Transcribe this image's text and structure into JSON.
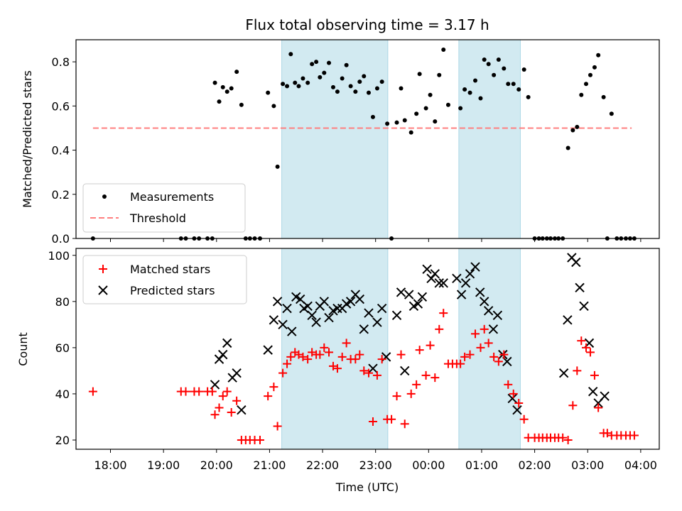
{
  "title": "Flux total observing time = 3.17 h",
  "colors": {
    "measurement": "#000000",
    "threshold": "#ff7f7f",
    "matched": "#ff0000",
    "predicted": "#000000",
    "shade": "#add8e6"
  },
  "chart_data": [
    {
      "type": "scatter",
      "id": "top",
      "ylabel": "Matched/Predicted stars",
      "xlim": [
        17.35,
        28.35
      ],
      "ylim": [
        0,
        0.9
      ],
      "yticks": [
        0.0,
        0.2,
        0.4,
        0.6,
        0.8
      ],
      "ytick_labels": [
        "0.0",
        "0.2",
        "0.4",
        "0.6",
        "0.8"
      ],
      "shaded_x_ranges": [
        [
          21.23,
          23.23
        ],
        [
          24.57,
          25.73
        ]
      ],
      "legend": {
        "position": "lower left",
        "entries": [
          "Measurements",
          "Threshold"
        ]
      },
      "threshold": {
        "name": "Threshold",
        "x": [
          17.67,
          27.83
        ],
        "y": 0.5
      },
      "measurements": {
        "name": "Measurements",
        "points": [
          [
            17.67,
            0
          ],
          [
            19.33,
            0
          ],
          [
            19.42,
            0
          ],
          [
            19.58,
            0
          ],
          [
            19.67,
            0
          ],
          [
            19.83,
            0
          ],
          [
            19.92,
            0
          ],
          [
            19.97,
            0.705
          ],
          [
            20.05,
            0.62
          ],
          [
            20.12,
            0.685
          ],
          [
            20.2,
            0.665
          ],
          [
            20.28,
            0.68
          ],
          [
            20.38,
            0.755
          ],
          [
            20.47,
            0.605
          ],
          [
            20.55,
            0
          ],
          [
            20.63,
            0
          ],
          [
            20.72,
            0
          ],
          [
            20.82,
            0
          ],
          [
            20.97,
            0.66
          ],
          [
            21.08,
            0.6
          ],
          [
            21.15,
            0.325
          ],
          [
            21.25,
            0.7
          ],
          [
            21.33,
            0.69
          ],
          [
            21.4,
            0.835
          ],
          [
            21.48,
            0.705
          ],
          [
            21.55,
            0.69
          ],
          [
            21.63,
            0.725
          ],
          [
            21.72,
            0.705
          ],
          [
            21.8,
            0.79
          ],
          [
            21.88,
            0.8
          ],
          [
            21.95,
            0.73
          ],
          [
            22.03,
            0.75
          ],
          [
            22.12,
            0.795
          ],
          [
            22.2,
            0.685
          ],
          [
            22.28,
            0.665
          ],
          [
            22.37,
            0.725
          ],
          [
            22.45,
            0.785
          ],
          [
            22.53,
            0.69
          ],
          [
            22.62,
            0.665
          ],
          [
            22.7,
            0.71
          ],
          [
            22.78,
            0.735
          ],
          [
            22.87,
            0.66
          ],
          [
            22.95,
            0.55
          ],
          [
            23.03,
            0.68
          ],
          [
            23.12,
            0.71
          ],
          [
            23.22,
            0.52
          ],
          [
            23.3,
            0
          ],
          [
            23.4,
            0.525
          ],
          [
            23.48,
            0.68
          ],
          [
            23.55,
            0.535
          ],
          [
            23.67,
            0.48
          ],
          [
            23.77,
            0.565
          ],
          [
            23.83,
            0.745
          ],
          [
            23.95,
            0.59
          ],
          [
            24.03,
            0.65
          ],
          [
            24.12,
            0.53
          ],
          [
            24.2,
            0.74
          ],
          [
            24.28,
            0.855
          ],
          [
            24.37,
            0.605
          ],
          [
            24.6,
            0.59
          ],
          [
            24.68,
            0.675
          ],
          [
            24.78,
            0.66
          ],
          [
            24.88,
            0.715
          ],
          [
            24.98,
            0.635
          ],
          [
            25.05,
            0.81
          ],
          [
            25.13,
            0.79
          ],
          [
            25.23,
            0.74
          ],
          [
            25.32,
            0.81
          ],
          [
            25.42,
            0.77
          ],
          [
            25.5,
            0.7
          ],
          [
            25.6,
            0.7
          ],
          [
            25.7,
            0.675
          ],
          [
            25.8,
            0.765
          ],
          [
            25.88,
            0.64
          ],
          [
            26.0,
            0
          ],
          [
            26.08,
            0
          ],
          [
            26.15,
            0
          ],
          [
            26.23,
            0
          ],
          [
            26.3,
            0
          ],
          [
            26.38,
            0
          ],
          [
            26.45,
            0
          ],
          [
            26.53,
            0
          ],
          [
            26.63,
            0.41
          ],
          [
            26.72,
            0.49
          ],
          [
            26.8,
            0.505
          ],
          [
            26.88,
            0.65
          ],
          [
            26.97,
            0.7
          ],
          [
            27.05,
            0.74
          ],
          [
            27.13,
            0.775
          ],
          [
            27.2,
            0.83
          ],
          [
            27.3,
            0.64
          ],
          [
            27.37,
            0
          ],
          [
            27.45,
            0.565
          ],
          [
            27.55,
            0
          ],
          [
            27.63,
            0
          ],
          [
            27.72,
            0
          ],
          [
            27.8,
            0
          ],
          [
            27.88,
            0
          ]
        ]
      }
    },
    {
      "type": "scatter",
      "id": "bottom",
      "xlabel": "Time (UTC)",
      "ylabel": "Count",
      "xlim": [
        17.35,
        28.35
      ],
      "ylim": [
        16,
        103
      ],
      "yticks": [
        20,
        40,
        60,
        80,
        100
      ],
      "ytick_labels": [
        "20",
        "40",
        "60",
        "80",
        "100"
      ],
      "xticks": [
        18,
        19,
        20,
        21,
        22,
        23,
        24,
        25,
        26,
        27,
        28
      ],
      "xtick_labels": [
        "18:00",
        "19:00",
        "20:00",
        "21:00",
        "22:00",
        "23:00",
        "00:00",
        "01:00",
        "02:00",
        "03:00",
        "04:00"
      ],
      "shaded_x_ranges": [
        [
          21.23,
          23.23
        ],
        [
          24.57,
          25.73
        ]
      ],
      "legend": {
        "position": "upper left",
        "entries": [
          "Matched stars",
          "Predicted stars"
        ]
      },
      "matched": {
        "name": "Matched stars",
        "points": [
          [
            17.67,
            41
          ],
          [
            19.33,
            41
          ],
          [
            19.42,
            41
          ],
          [
            19.58,
            41
          ],
          [
            19.67,
            41
          ],
          [
            19.83,
            41
          ],
          [
            19.92,
            41
          ],
          [
            19.97,
            31
          ],
          [
            20.05,
            34
          ],
          [
            20.12,
            39
          ],
          [
            20.2,
            41
          ],
          [
            20.28,
            32
          ],
          [
            20.38,
            37
          ],
          [
            20.47,
            20
          ],
          [
            20.55,
            20
          ],
          [
            20.63,
            20
          ],
          [
            20.72,
            20
          ],
          [
            20.82,
            20
          ],
          [
            20.97,
            39
          ],
          [
            21.08,
            43
          ],
          [
            21.15,
            26
          ],
          [
            21.25,
            49
          ],
          [
            21.33,
            53
          ],
          [
            21.4,
            56
          ],
          [
            21.48,
            58
          ],
          [
            21.55,
            57
          ],
          [
            21.63,
            56
          ],
          [
            21.72,
            55
          ],
          [
            21.8,
            58
          ],
          [
            21.88,
            57
          ],
          [
            21.95,
            57
          ],
          [
            22.03,
            60
          ],
          [
            22.12,
            58
          ],
          [
            22.2,
            52
          ],
          [
            22.28,
            51
          ],
          [
            22.37,
            56
          ],
          [
            22.45,
            62
          ],
          [
            22.53,
            55
          ],
          [
            22.62,
            55
          ],
          [
            22.7,
            57
          ],
          [
            22.78,
            50
          ],
          [
            22.87,
            49
          ],
          [
            22.95,
            28
          ],
          [
            23.03,
            48
          ],
          [
            23.12,
            55
          ],
          [
            23.22,
            29
          ],
          [
            23.3,
            29
          ],
          [
            23.4,
            39
          ],
          [
            23.48,
            57
          ],
          [
            23.55,
            27
          ],
          [
            23.67,
            40
          ],
          [
            23.77,
            44
          ],
          [
            23.83,
            59
          ],
          [
            23.95,
            48
          ],
          [
            24.03,
            61
          ],
          [
            24.12,
            47
          ],
          [
            24.2,
            68
          ],
          [
            24.28,
            75
          ],
          [
            24.37,
            53
          ],
          [
            24.45,
            53
          ],
          [
            24.53,
            53
          ],
          [
            24.6,
            53
          ],
          [
            24.68,
            56
          ],
          [
            24.78,
            57
          ],
          [
            24.88,
            66
          ],
          [
            24.98,
            60
          ],
          [
            25.05,
            68
          ],
          [
            25.13,
            62
          ],
          [
            25.23,
            56
          ],
          [
            25.32,
            54
          ],
          [
            25.42,
            57
          ],
          [
            25.5,
            44
          ],
          [
            25.6,
            40
          ],
          [
            25.7,
            36
          ],
          [
            25.8,
            29
          ],
          [
            25.88,
            21
          ],
          [
            26.0,
            21
          ],
          [
            26.08,
            21
          ],
          [
            26.15,
            21
          ],
          [
            26.23,
            21
          ],
          [
            26.3,
            21
          ],
          [
            26.38,
            21
          ],
          [
            26.45,
            21
          ],
          [
            26.53,
            21
          ],
          [
            26.63,
            20
          ],
          [
            26.72,
            35
          ],
          [
            26.8,
            50
          ],
          [
            26.88,
            63
          ],
          [
            26.97,
            60
          ],
          [
            27.05,
            58
          ],
          [
            27.13,
            48
          ],
          [
            27.2,
            34
          ],
          [
            27.3,
            23
          ],
          [
            27.37,
            23
          ],
          [
            27.45,
            22
          ],
          [
            27.55,
            22
          ],
          [
            27.63,
            22
          ],
          [
            27.72,
            22
          ],
          [
            27.8,
            22
          ],
          [
            27.88,
            22
          ]
        ]
      },
      "predicted": {
        "name": "Predicted stars",
        "points": [
          [
            19.97,
            44
          ],
          [
            20.05,
            55
          ],
          [
            20.12,
            57
          ],
          [
            20.2,
            62
          ],
          [
            20.3,
            47
          ],
          [
            20.38,
            49
          ],
          [
            20.47,
            33
          ],
          [
            20.97,
            59
          ],
          [
            21.08,
            72
          ],
          [
            21.15,
            80
          ],
          [
            21.25,
            70
          ],
          [
            21.33,
            77
          ],
          [
            21.42,
            67
          ],
          [
            21.5,
            82
          ],
          [
            21.58,
            81
          ],
          [
            21.65,
            77
          ],
          [
            21.72,
            78
          ],
          [
            21.8,
            74
          ],
          [
            21.88,
            71
          ],
          [
            21.95,
            78
          ],
          [
            22.03,
            80
          ],
          [
            22.12,
            73
          ],
          [
            22.2,
            76
          ],
          [
            22.28,
            77
          ],
          [
            22.37,
            77
          ],
          [
            22.45,
            79
          ],
          [
            22.53,
            80
          ],
          [
            22.62,
            83
          ],
          [
            22.7,
            81
          ],
          [
            22.78,
            68
          ],
          [
            22.87,
            75
          ],
          [
            22.95,
            51
          ],
          [
            23.03,
            71
          ],
          [
            23.12,
            77
          ],
          [
            23.2,
            56
          ],
          [
            23.4,
            74
          ],
          [
            23.48,
            84
          ],
          [
            23.55,
            50
          ],
          [
            23.63,
            83
          ],
          [
            23.72,
            78
          ],
          [
            23.8,
            79
          ],
          [
            23.88,
            82
          ],
          [
            23.97,
            94
          ],
          [
            24.05,
            90
          ],
          [
            24.12,
            92
          ],
          [
            24.2,
            88
          ],
          [
            24.28,
            88
          ],
          [
            24.53,
            90
          ],
          [
            24.62,
            83
          ],
          [
            24.7,
            88
          ],
          [
            24.78,
            92
          ],
          [
            24.88,
            95
          ],
          [
            24.97,
            84
          ],
          [
            25.05,
            80
          ],
          [
            25.13,
            76
          ],
          [
            25.22,
            68
          ],
          [
            25.3,
            74
          ],
          [
            25.4,
            57
          ],
          [
            25.48,
            54
          ],
          [
            25.58,
            38
          ],
          [
            25.67,
            33
          ],
          [
            26.55,
            49
          ],
          [
            26.62,
            72
          ],
          [
            26.7,
            99
          ],
          [
            26.78,
            97
          ],
          [
            26.85,
            86
          ],
          [
            26.93,
            78
          ],
          [
            27.03,
            62
          ],
          [
            27.1,
            41
          ],
          [
            27.2,
            36
          ],
          [
            27.32,
            39
          ]
        ]
      }
    }
  ]
}
